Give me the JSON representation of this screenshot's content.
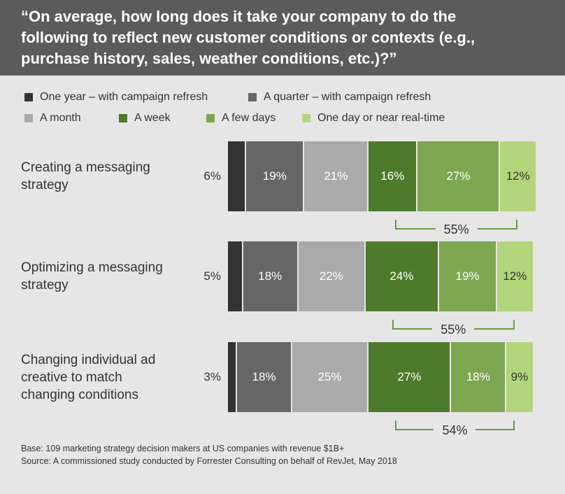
{
  "chart_data": {
    "type": "stacked-bar-horizontal",
    "title": "“On average, how long does it take your company to do the following to reflect new customer conditions or contexts (e.g., purchase history, sales, weather conditions, etc.)?”",
    "categories": [
      "Creating a messaging strategy",
      "Optimizing a messaging strategy",
      "Changing individual ad creative to match changing conditions"
    ],
    "xlim": [
      0,
      101
    ],
    "series": [
      {
        "name": "One year – with campaign refresh",
        "color": "#333333",
        "label_color": "#333333",
        "label_outside": true,
        "values": [
          6,
          5,
          3
        ],
        "value_labels": [
          "6%",
          "5%",
          "3%"
        ]
      },
      {
        "name": "A quarter – with campaign refresh",
        "color": "#666666",
        "label_color": "#ffffff",
        "values": [
          19,
          18,
          18
        ],
        "value_labels": [
          "19%",
          "18%",
          "18%"
        ]
      },
      {
        "name": "A month",
        "color": "#aaaaaa",
        "label_color": "#ffffff",
        "values": [
          21,
          22,
          25
        ],
        "value_labels": [
          "21%",
          "22%",
          "25%"
        ]
      },
      {
        "name": "A week",
        "color": "#4e7a2b",
        "label_color": "#ffffff",
        "values": [
          16,
          24,
          27
        ],
        "value_labels": [
          "16%",
          "24%",
          "27%"
        ]
      },
      {
        "name": "A few days",
        "color": "#7ea752",
        "label_color": "#ffffff",
        "values": [
          27,
          19,
          18
        ],
        "value_labels": [
          "27%",
          "19%",
          "18%"
        ]
      },
      {
        "name": "One day or near real-time",
        "color": "#b2d57b",
        "label_color": "#333333",
        "values": [
          12,
          12,
          9
        ],
        "value_labels": [
          "12%",
          "12%",
          "9%"
        ]
      }
    ],
    "bracket": {
      "color": "#6a9a3c",
      "values": [
        55,
        55,
        54
      ],
      "value_labels": [
        "55%",
        "55%",
        "54%"
      ]
    },
    "notes": [
      "Base: 109 marketing strategy decision makers at US companies with revenue $1B+",
      "Source: A commissioned study conducted by Forrester Consulting on behalf of RevJet, May 2018"
    ]
  }
}
